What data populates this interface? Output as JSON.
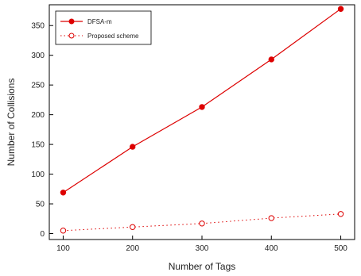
{
  "chart_data": {
    "type": "line",
    "xlabel": "Number of Tags",
    "ylabel": "Number of Collisions",
    "x": [
      100,
      200,
      300,
      400,
      500
    ],
    "xlim": [
      80,
      520
    ],
    "ylim": [
      -10,
      385
    ],
    "xticks": [
      100,
      200,
      300,
      400,
      500
    ],
    "yticks": [
      0,
      50,
      100,
      150,
      200,
      250,
      300,
      350
    ],
    "grid": false,
    "legend_position": "top-left",
    "series": [
      {
        "name": "DFSA-m",
        "values": [
          69,
          146,
          213,
          293,
          378
        ],
        "color": "#dd0000",
        "marker": "filled-circle",
        "line": "solid"
      },
      {
        "name": "Proposed scheme",
        "values": [
          5,
          11,
          17,
          26,
          33
        ],
        "color": "#dd0000",
        "marker": "open-circle",
        "line": "dotted"
      }
    ]
  }
}
